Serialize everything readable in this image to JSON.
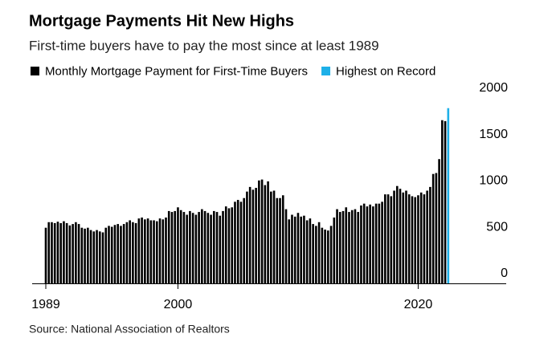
{
  "chart_data": {
    "type": "bar",
    "title": "Mortgage Payments Hit New Highs",
    "subtitle": "First-time buyers have to pay the most since at least 1989",
    "source": "Source: National Association of Realtors",
    "xlim": [
      1988.7,
      2026
    ],
    "xticks": [
      1989,
      2000,
      2020
    ],
    "ylim": [
      0,
      2000
    ],
    "yticks": [
      0,
      500,
      1000,
      1500,
      2000
    ],
    "series": [
      {
        "name": "Monthly Mortgage Payment for First-Time Buyers",
        "color": "#000000",
        "x": [
          1989,
          1989.25,
          1989.5,
          1989.75,
          1990,
          1990.25,
          1990.5,
          1990.75,
          1991,
          1991.25,
          1991.5,
          1991.75,
          1992,
          1992.25,
          1992.5,
          1992.75,
          1993,
          1993.25,
          1993.5,
          1993.75,
          1994,
          1994.25,
          1994.5,
          1994.75,
          1995,
          1995.25,
          1995.5,
          1995.75,
          1996,
          1996.25,
          1996.5,
          1996.75,
          1997,
          1997.25,
          1997.5,
          1997.75,
          1998,
          1998.25,
          1998.5,
          1998.75,
          1999,
          1999.25,
          1999.5,
          1999.75,
          2000,
          2000.25,
          2000.5,
          2000.75,
          2001,
          2001.25,
          2001.5,
          2001.75,
          2002,
          2002.25,
          2002.5,
          2002.75,
          2003,
          2003.25,
          2003.5,
          2003.75,
          2004,
          2004.25,
          2004.5,
          2004.75,
          2005,
          2005.25,
          2005.5,
          2005.75,
          2006,
          2006.25,
          2006.5,
          2006.75,
          2007,
          2007.25,
          2007.5,
          2007.75,
          2008,
          2008.25,
          2008.5,
          2008.75,
          2009,
          2009.25,
          2009.5,
          2009.75,
          2010,
          2010.25,
          2010.5,
          2010.75,
          2011,
          2011.25,
          2011.5,
          2011.75,
          2012,
          2012.25,
          2012.5,
          2012.75,
          2013,
          2013.25,
          2013.5,
          2013.75,
          2014,
          2014.25,
          2014.5,
          2014.75,
          2015,
          2015.25,
          2015.5,
          2015.75,
          2016,
          2016.25,
          2016.5,
          2016.75,
          2017,
          2017.25,
          2017.5,
          2017.75,
          2018,
          2018.25,
          2018.5,
          2018.75,
          2019,
          2019.25,
          2019.5,
          2019.75,
          2020,
          2020.25,
          2020.5,
          2020.75,
          2021,
          2021.25,
          2021.5,
          2021.75,
          2022,
          2022.25
        ],
        "values": [
          600,
          660,
          660,
          650,
          665,
          650,
          670,
          650,
          625,
          640,
          660,
          640,
          600,
          590,
          600,
          575,
          560,
          575,
          560,
          550,
          600,
          620,
          610,
          630,
          640,
          620,
          640,
          660,
          680,
          660,
          650,
          700,
          710,
          690,
          700,
          680,
          680,
          670,
          700,
          690,
          710,
          780,
          770,
          780,
          820,
          790,
          770,
          740,
          780,
          760,
          740,
          770,
          800,
          780,
          760,
          740,
          780,
          770,
          730,
          780,
          830,
          810,
          820,
          880,
          900,
          880,
          920,
          990,
          1040,
          1010,
          1030,
          1110,
          1120,
          1060,
          1100,
          990,
          1000,
          920,
          920,
          950,
          800,
          690,
          740,
          720,
          760,
          720,
          730,
          680,
          700,
          640,
          620,
          660,
          600,
          580,
          570,
          620,
          710,
          800,
          770,
          780,
          820,
          770,
          790,
          800,
          770,
          840,
          860,
          830,
          850,
          830,
          860,
          860,
          880,
          960,
          960,
          940,
          1000,
          1050,
          1020,
          980,
          1000,
          960,
          940,
          930,
          950,
          980,
          960,
          1000,
          1040,
          1180,
          1190,
          1340,
          1760,
          1750
        ]
      },
      {
        "name": "Highest on Record",
        "color": "#1eb0e8",
        "x": [
          2022.5
        ],
        "values": [
          1890
        ]
      }
    ]
  }
}
